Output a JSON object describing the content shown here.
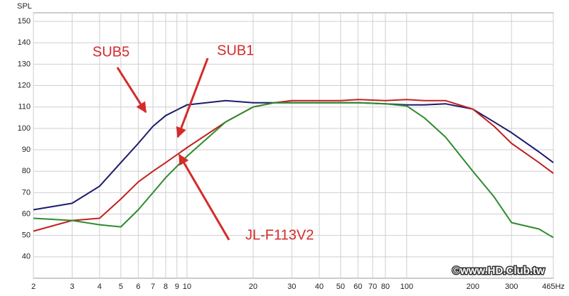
{
  "chart_data": {
    "type": "line",
    "y_label": "SPL",
    "x": [
      2,
      3,
      4,
      5,
      6,
      7,
      8,
      10,
      15,
      20,
      25,
      30,
      40,
      50,
      60,
      80,
      100,
      120,
      150,
      200,
      250,
      300,
      400,
      465
    ],
    "series": [
      {
        "name": "SUB5",
        "color": "#1c1c6e",
        "values": [
          62,
          65,
          73,
          84,
          93,
          101,
          106,
          111,
          113,
          112,
          112,
          112,
          112,
          112,
          112,
          111.5,
          111,
          111,
          111.5,
          109,
          103,
          98,
          89,
          84
        ]
      },
      {
        "name": "SUB1",
        "color": "#c0221f",
        "values": [
          52,
          57,
          58,
          67,
          75,
          80,
          84,
          91,
          103,
          110,
          112,
          113,
          113,
          113,
          113.5,
          113,
          113.5,
          113,
          113,
          109,
          101,
          93,
          84,
          79
        ]
      },
      {
        "name": "JL-F113V2",
        "color": "#2e8b2e",
        "values": [
          58,
          57,
          55,
          54,
          62,
          70,
          77,
          87,
          103,
          110,
          112,
          112,
          112,
          112,
          112,
          111.5,
          110.5,
          105,
          96,
          80,
          68,
          56,
          53,
          49
        ]
      }
    ],
    "xlim": [
      2,
      465
    ],
    "xlog": true,
    "xticks": [
      2,
      3,
      4,
      5,
      6,
      7,
      8,
      9,
      10,
      20,
      30,
      40,
      50,
      60,
      70,
      80,
      100,
      200,
      300,
      {
        "value": 465,
        "label": "465Hz"
      }
    ],
    "ylim": [
      30,
      154
    ],
    "yticks": [
      40,
      50,
      60,
      70,
      80,
      90,
      100,
      110,
      120,
      130,
      140,
      150
    ],
    "grid": true,
    "watermark": "©www.HD.Club.tw"
  }
}
